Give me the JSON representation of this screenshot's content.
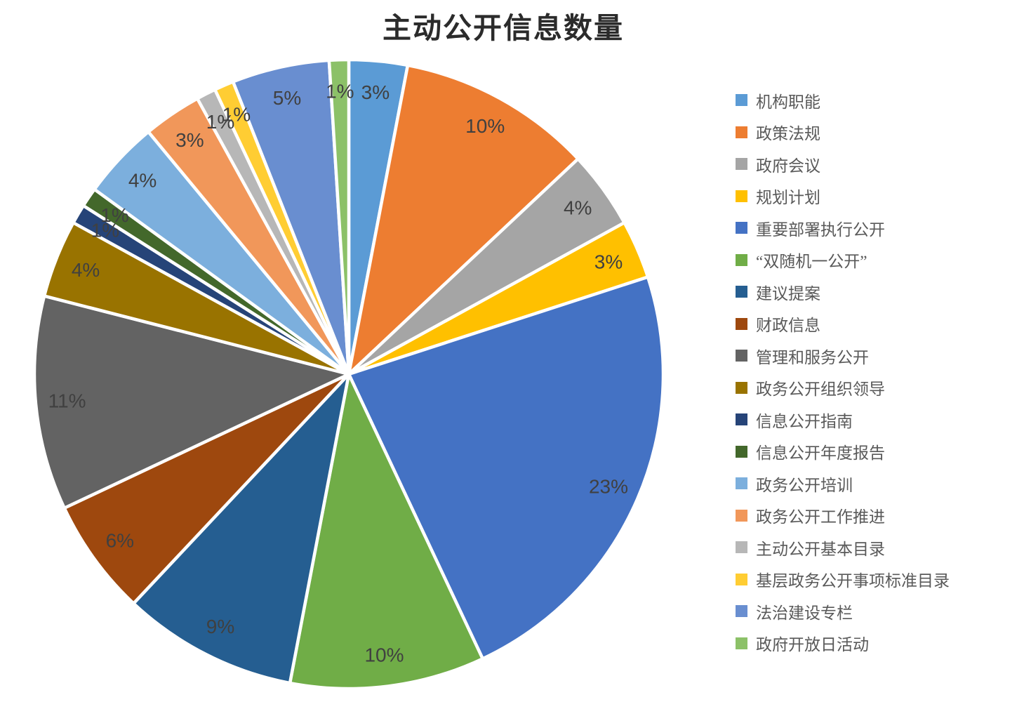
{
  "title": "主动公开信息数量",
  "chart_data": {
    "type": "pie",
    "title": "主动公开信息数量",
    "unit": "percent",
    "start_angle_deg": 0,
    "direction": "clockwise",
    "legend_position": "right",
    "data_label_style": "inside-end-percent",
    "data_label_color": "#404040",
    "slice_border_color": "#FFFFFF",
    "slices": [
      {
        "label": "机构职能",
        "value": 3,
        "pct": "3%",
        "color": "#5B9BD5"
      },
      {
        "label": "政策法规",
        "value": 10,
        "pct": "10%",
        "color": "#ED7D31"
      },
      {
        "label": "政府会议",
        "value": 4,
        "pct": "4%",
        "color": "#A5A5A5"
      },
      {
        "label": "规划计划",
        "value": 3,
        "pct": "3%",
        "color": "#FFC000"
      },
      {
        "label": "重要部署执行公开",
        "value": 23,
        "pct": "23%",
        "color": "#4472C4"
      },
      {
        "label": "“双随机一公开”",
        "value": 10,
        "pct": "10%",
        "color": "#70AD47"
      },
      {
        "label": "建议提案",
        "value": 9,
        "pct": "9%",
        "color": "#255E91"
      },
      {
        "label": "财政信息",
        "value": 6,
        "pct": "6%",
        "color": "#9E480E"
      },
      {
        "label": "管理和服务公开",
        "value": 11,
        "pct": "11%",
        "color": "#636363"
      },
      {
        "label": "政务公开组织领导",
        "value": 4,
        "pct": "4%",
        "color": "#997300"
      },
      {
        "label": "信息公开指南",
        "value": 1,
        "pct": "1%",
        "color": "#264478"
      },
      {
        "label": "信息公开年度报告",
        "value": 1,
        "pct": "1%",
        "color": "#43682B"
      },
      {
        "label": "政务公开培训",
        "value": 4,
        "pct": "4%",
        "color": "#7CAFDD"
      },
      {
        "label": "政务公开工作推进",
        "value": 3,
        "pct": "3%",
        "color": "#F1975A"
      },
      {
        "label": "主动公开基本目录",
        "value": 1,
        "pct": "1%",
        "color": "#B7B7B7"
      },
      {
        "label": "基层政务公开事项标准目录",
        "value": 1,
        "pct": "1%",
        "color": "#FFCD33"
      },
      {
        "label": "法治建设专栏",
        "value": 5,
        "pct": "5%",
        "color": "#698ED0"
      },
      {
        "label": "政府开放日活动",
        "value": 1,
        "pct": "1%",
        "color": "#8CC168"
      }
    ]
  }
}
